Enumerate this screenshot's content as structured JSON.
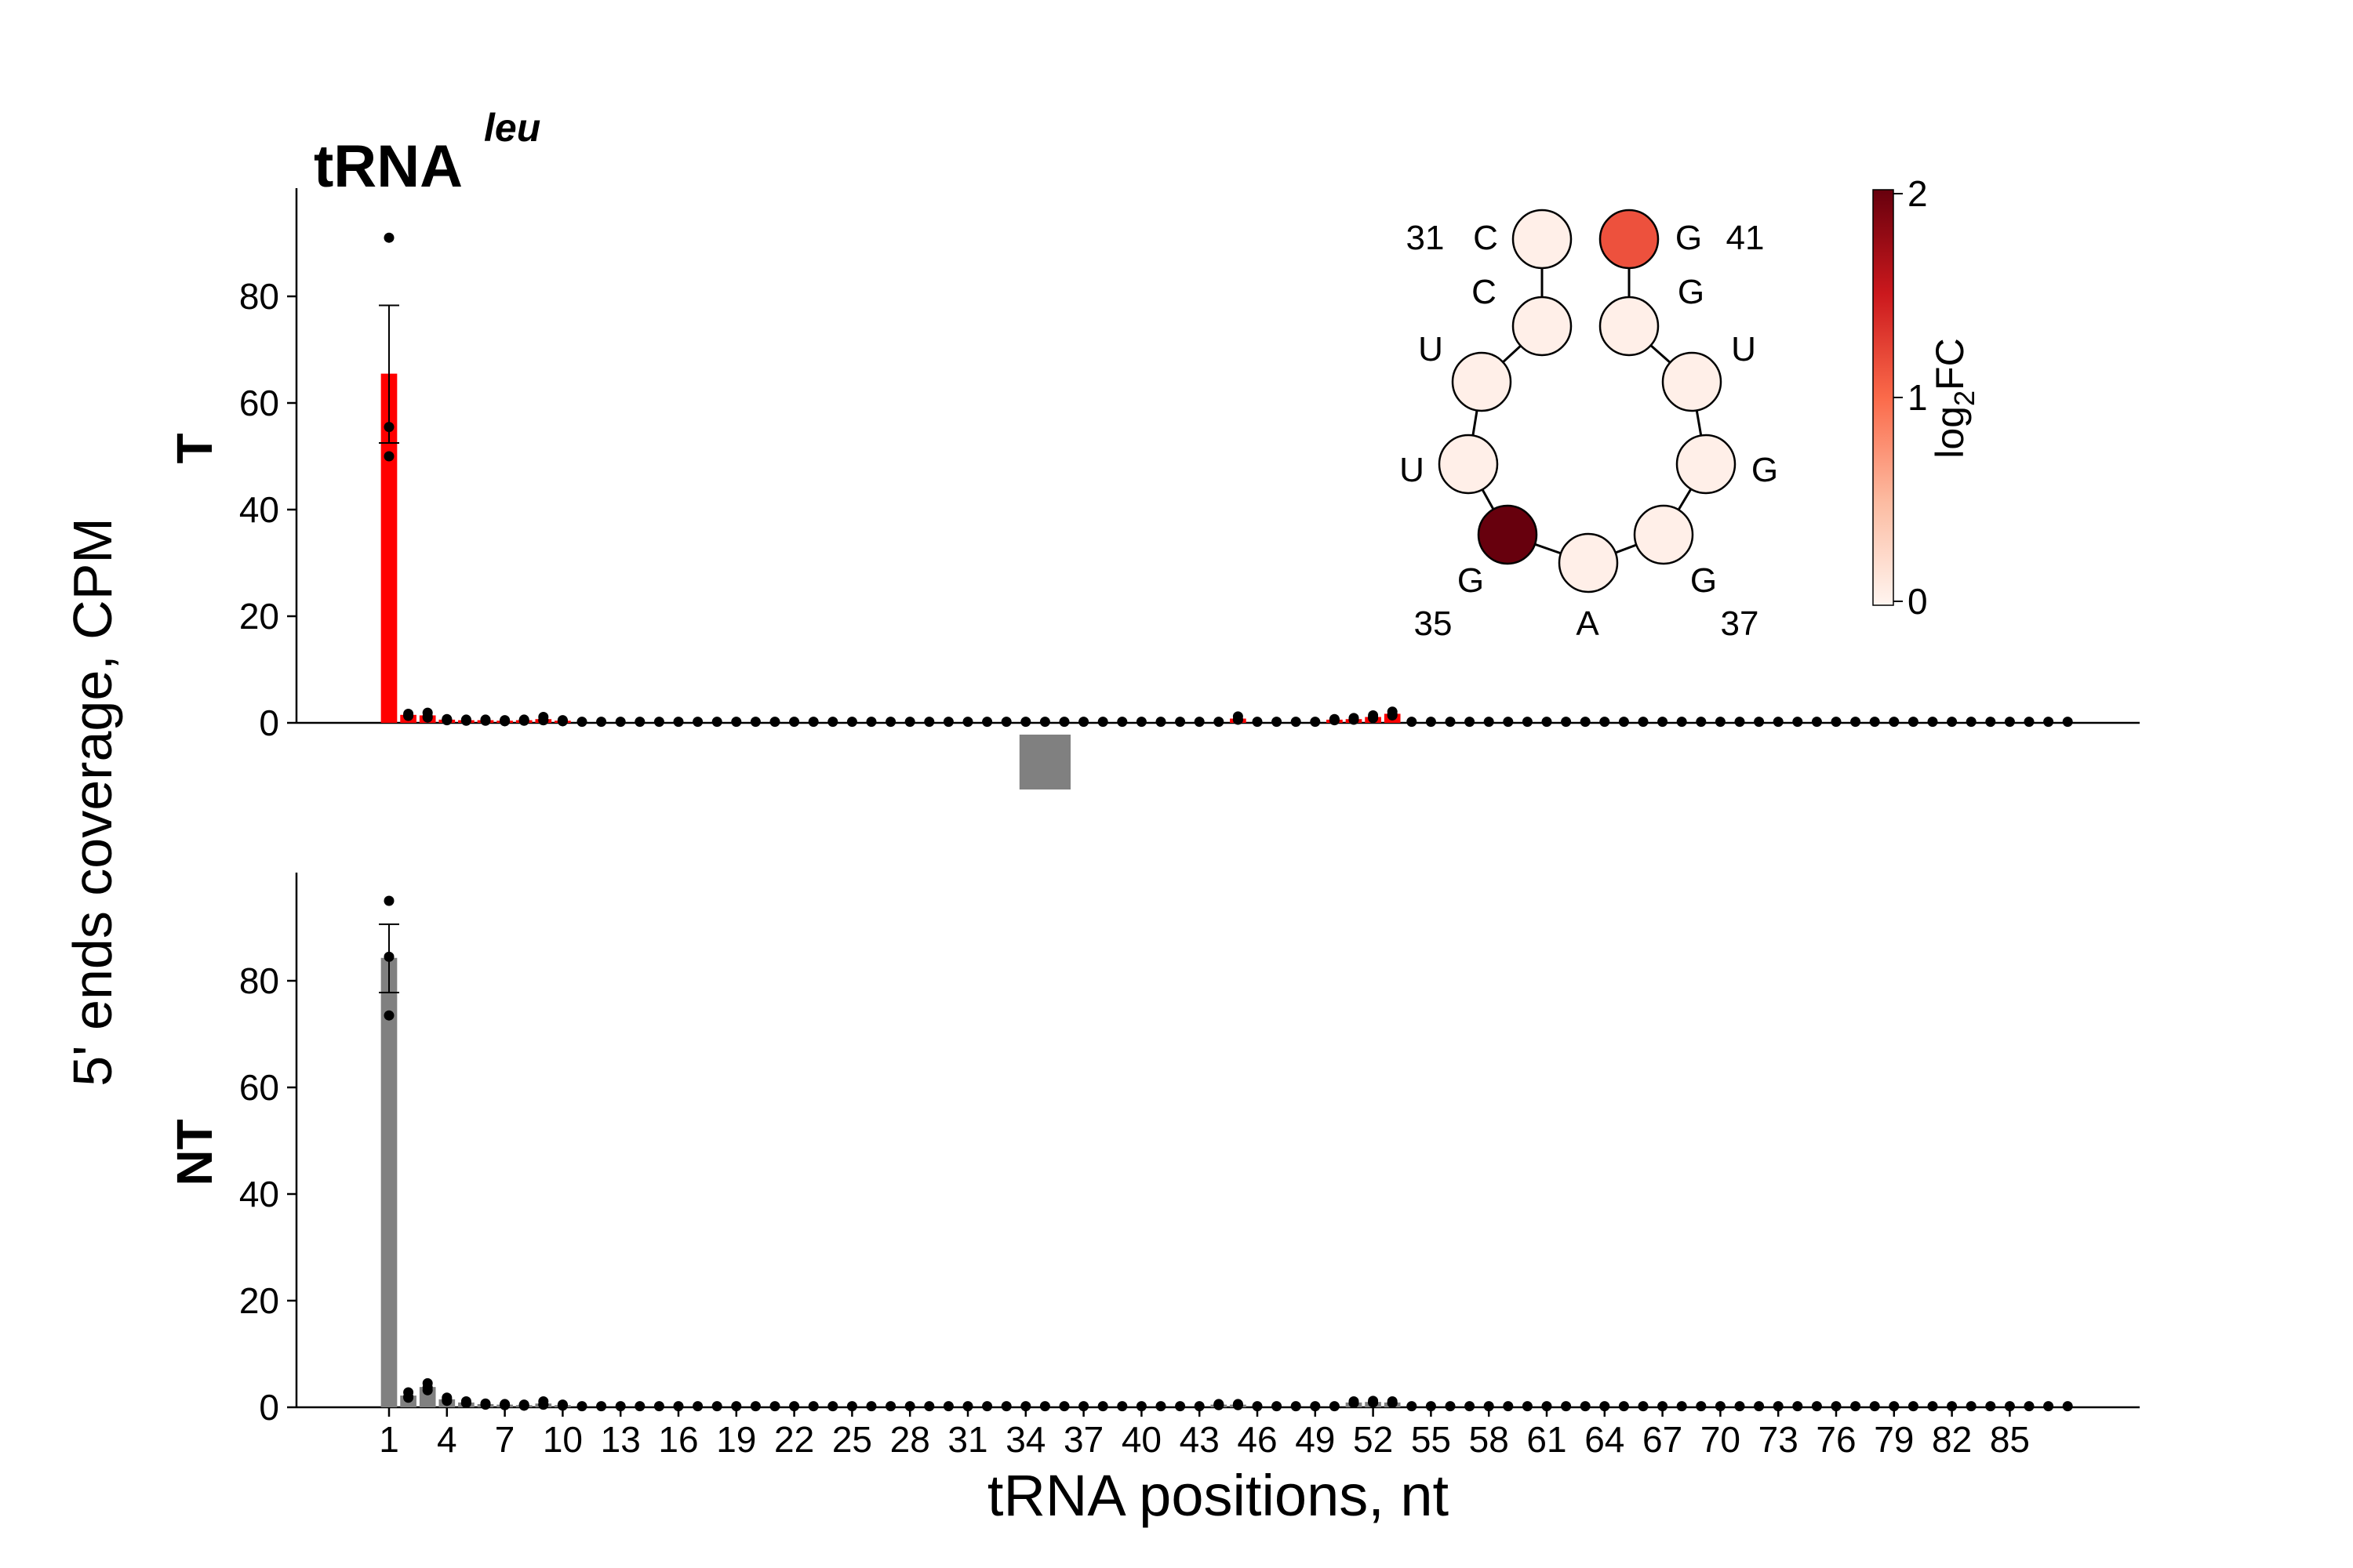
{
  "chart_data": {
    "type": "bar",
    "title": "tRNA",
    "title_superscript": "leu",
    "xlabel": "tRNA positions, nt",
    "ylabel": "5' ends coverage, CPM",
    "x_range": [
      1,
      88
    ],
    "x_tick_labels": [
      "1",
      "4",
      "7",
      "10",
      "13",
      "16",
      "19",
      "22",
      "25",
      "28",
      "31",
      "34",
      "37",
      "40",
      "43",
      "46",
      "49",
      "52",
      "55",
      "58",
      "61",
      "64",
      "67",
      "70",
      "73",
      "76",
      "79",
      "82",
      "85"
    ],
    "y_tick_labels": [
      "0",
      "20",
      "40",
      "60",
      "80"
    ],
    "ylim": [
      0,
      100
    ],
    "grid": false,
    "highlight_region": {
      "positions": [
        34,
        36
      ],
      "color": "#808080"
    },
    "panels": [
      {
        "name": "T",
        "color": "#ff0000",
        "bars": [
          {
            "x": 1,
            "value": 65.5,
            "err_low": 52.5,
            "err_high": 78.3,
            "points": [
              91,
              55.5,
              50
            ]
          },
          {
            "x": 2,
            "value": 1.5,
            "points": [
              1.7,
              1.3,
              1.5
            ]
          },
          {
            "x": 3,
            "value": 1.4,
            "points": [
              1.9,
              1.0,
              1.2
            ]
          },
          {
            "x": 4,
            "value": 0.6,
            "points": [
              0.7,
              0.5,
              0.6
            ]
          },
          {
            "x": 5,
            "value": 0.5,
            "points": [
              0.6,
              0.4,
              0.5
            ]
          },
          {
            "x": 6,
            "value": 0.5,
            "points": [
              0.6,
              0.4,
              0.5
            ]
          },
          {
            "x": 7,
            "value": 0.4,
            "points": [
              0.5,
              0.3,
              0.4
            ]
          },
          {
            "x": 8,
            "value": 0.5,
            "points": [
              0.6,
              0.4,
              0.5
            ]
          },
          {
            "x": 9,
            "value": 0.7,
            "points": [
              1.1,
              0.5,
              0.5
            ]
          },
          {
            "x": 10,
            "value": 0.4,
            "points": [
              0.5,
              0.3,
              0.4
            ]
          },
          {
            "x": 45,
            "value": 0.8,
            "points": [
              1.2,
              0.6,
              0.6
            ]
          },
          {
            "x": 50,
            "value": 0.6,
            "points": [
              0.7,
              0.5,
              0.6
            ]
          },
          {
            "x": 51,
            "value": 0.7,
            "points": [
              0.9,
              0.6,
              0.6
            ]
          },
          {
            "x": 52,
            "value": 1.1,
            "points": [
              1.4,
              0.9,
              1.0
            ]
          },
          {
            "x": 53,
            "value": 1.7,
            "points": [
              2.1,
              1.4,
              1.6
            ]
          }
        ],
        "baseline_value": 0.2
      },
      {
        "name": "NT",
        "color": "#808080",
        "bars": [
          {
            "x": 1,
            "value": 84.3,
            "err_low": 77.8,
            "err_high": 90.6,
            "points": [
              95,
              84.5,
              73.5
            ]
          },
          {
            "x": 2,
            "value": 2.2,
            "points": [
              2.8,
              1.8,
              2.0
            ]
          },
          {
            "x": 3,
            "value": 3.8,
            "points": [
              4.5,
              3.2,
              3.7
            ]
          },
          {
            "x": 4,
            "value": 1.5,
            "points": [
              1.8,
              1.2,
              1.5
            ]
          },
          {
            "x": 5,
            "value": 0.9,
            "points": [
              1.1,
              0.8,
              0.8
            ]
          },
          {
            "x": 6,
            "value": 0.6,
            "points": [
              0.7,
              0.5,
              0.6
            ]
          },
          {
            "x": 7,
            "value": 0.5,
            "points": [
              0.6,
              0.4,
              0.5
            ]
          },
          {
            "x": 8,
            "value": 0.4,
            "points": [
              0.5,
              0.3,
              0.4
            ]
          },
          {
            "x": 9,
            "value": 0.7,
            "points": [
              1.1,
              0.5,
              0.5
            ]
          },
          {
            "x": 10,
            "value": 0.4,
            "points": [
              0.5,
              0.3,
              0.4
            ]
          },
          {
            "x": 44,
            "value": 0.5,
            "points": [
              0.6,
              0.4,
              0.5
            ]
          },
          {
            "x": 45,
            "value": 0.5,
            "points": [
              0.6,
              0.4,
              0.5
            ]
          },
          {
            "x": 51,
            "value": 0.9,
            "points": [
              1.1,
              0.8,
              0.8
            ]
          },
          {
            "x": 52,
            "value": 1.0,
            "points": [
              1.2,
              0.9,
              0.9
            ]
          },
          {
            "x": 53,
            "value": 0.9,
            "points": [
              1.1,
              0.8,
              0.8
            ]
          }
        ],
        "baseline_value": 0.2
      }
    ],
    "anticodon_loop": {
      "nodes": [
        {
          "pos": 31,
          "base": "C",
          "log2fc": 0.05
        },
        {
          "pos": 32,
          "base": "C",
          "log2fc": 0.05
        },
        {
          "pos": 33,
          "base": "U",
          "log2fc": 0.05
        },
        {
          "pos": 34,
          "base": "U",
          "log2fc": 0.05
        },
        {
          "pos": 35,
          "base": "G",
          "log2fc": 2.0
        },
        {
          "pos": 36,
          "base": "A",
          "log2fc": 0.05
        },
        {
          "pos": 37,
          "base": "G",
          "log2fc": 0.05
        },
        {
          "pos": 38,
          "base": "G",
          "log2fc": 0.05
        },
        {
          "pos": 39,
          "base": "U",
          "log2fc": 0.05
        },
        {
          "pos": 40,
          "base": "G",
          "log2fc": 0.05
        },
        {
          "pos": 41,
          "base": "G",
          "log2fc": 1.15
        }
      ],
      "number_labels": [
        "31",
        "41",
        "35",
        "37"
      ],
      "colorbar": {
        "label": "FC",
        "label_prefix": "log",
        "label_subscript": "2",
        "range": [
          0,
          2
        ],
        "ticks": [
          "0",
          "1",
          "2"
        ],
        "colors": [
          "#fff5f0",
          "#fcbba1",
          "#fb6a4a",
          "#cb181d",
          "#67000d"
        ]
      }
    }
  }
}
